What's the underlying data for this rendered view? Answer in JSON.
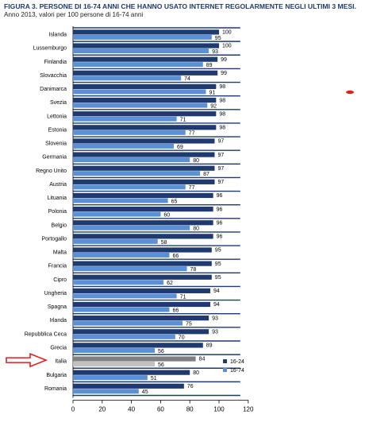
{
  "figure": {
    "title": "FIGURA 3. PERSONE DI 16-74 ANNI CHE HANNO USATO INTERNET REGOLARMENTE NEGLI ULTIMI 3 MESI.",
    "subtitle": "Anno 2013, valori per 100 persone di 16-74 anni"
  },
  "colors": {
    "series_16_24": "#1f3a6e",
    "series_16_74": "#5b8fd6",
    "highlight_16_24": "#808080",
    "highlight_16_74": "#c0c0c0",
    "arrow": "#e02020",
    "row_band": "#1f3a6e"
  },
  "chart_data": {
    "type": "bar",
    "orientation": "horizontal",
    "categories": [
      "Islanda",
      "Lussemburgo",
      "Finlandia",
      "Slovacchia",
      "Danimarca",
      "Svezia",
      "Lettonia",
      "Estonia",
      "Slovenia",
      "Germania",
      "Regno Unito",
      "Austria",
      "Lituania",
      "Polonia",
      "Belgio",
      "Portogallo",
      "Malta",
      "Francia",
      "Cipro",
      "Ungheria",
      "Spagna",
      "Irlanda",
      "Repubblica Ceca",
      "Grecia",
      "Italia",
      "Bulgaria",
      "Romania"
    ],
    "series": [
      {
        "name": "16-24",
        "values": [
          100,
          100,
          99,
          99,
          98,
          98,
          98,
          98,
          97,
          97,
          97,
          97,
          96,
          96,
          96,
          96,
          95,
          95,
          95,
          94,
          94,
          93,
          93,
          89,
          84,
          80,
          76
        ]
      },
      {
        "name": "16-74",
        "values": [
          95,
          93,
          89,
          74,
          91,
          92,
          71,
          77,
          69,
          80,
          87,
          77,
          65,
          60,
          80,
          58,
          66,
          78,
          62,
          71,
          66,
          75,
          70,
          56,
          56,
          51,
          45
        ]
      }
    ],
    "highlight_category": "Italia",
    "xlim": [
      0,
      120
    ],
    "xticks": [
      0,
      20,
      40,
      60,
      80,
      100,
      120
    ],
    "legend_position": "bottom-right"
  }
}
